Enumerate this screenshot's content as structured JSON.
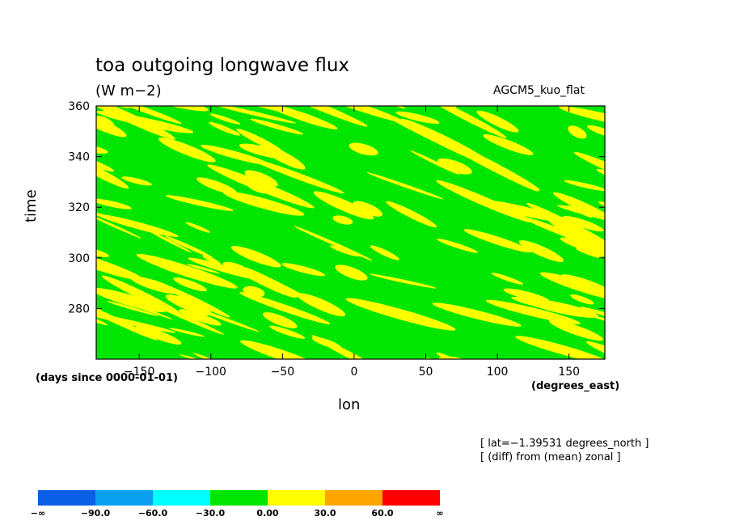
{
  "chart_data": {
    "type": "heatmap",
    "title": "toa outgoing longwave flux",
    "units": "(W m−2)",
    "model_label": "AGCM5_kuo_flat",
    "xlabel": "lon",
    "xunits": "(degrees_east)",
    "ylabel": "time",
    "yunits": "(days since 0000-01-01)",
    "xlim": [
      -180,
      175
    ],
    "ylim": [
      260,
      360
    ],
    "xticks": [
      -150,
      -100,
      -50,
      0,
      50,
      100,
      150
    ],
    "xtick_labels": [
      "−150",
      "−100",
      "−50",
      "0",
      "50",
      "100",
      "150"
    ],
    "yticks": [
      280,
      300,
      320,
      340,
      360
    ],
    "ytick_labels": [
      "280",
      "300",
      "320",
      "340",
      "360"
    ],
    "grid": false,
    "notes": [
      "[ lat=−1.39531 degrees_north ]",
      "[ (diff) from (mean) zonal ]"
    ],
    "colorbar": {
      "colors": [
        "#0a5fe6",
        "#0aa0f0",
        "#00ffff",
        "#00e600",
        "#ffff00",
        "#ffa500",
        "#ff0000"
      ],
      "boundaries": [
        "−∞",
        "−90.0",
        "−60.0",
        "−30.0",
        "0.00",
        "30.0",
        "60.0",
        "∞"
      ]
    },
    "field_levels": {
      "negative": "#00e600",
      "positive": "#ffff00"
    }
  }
}
